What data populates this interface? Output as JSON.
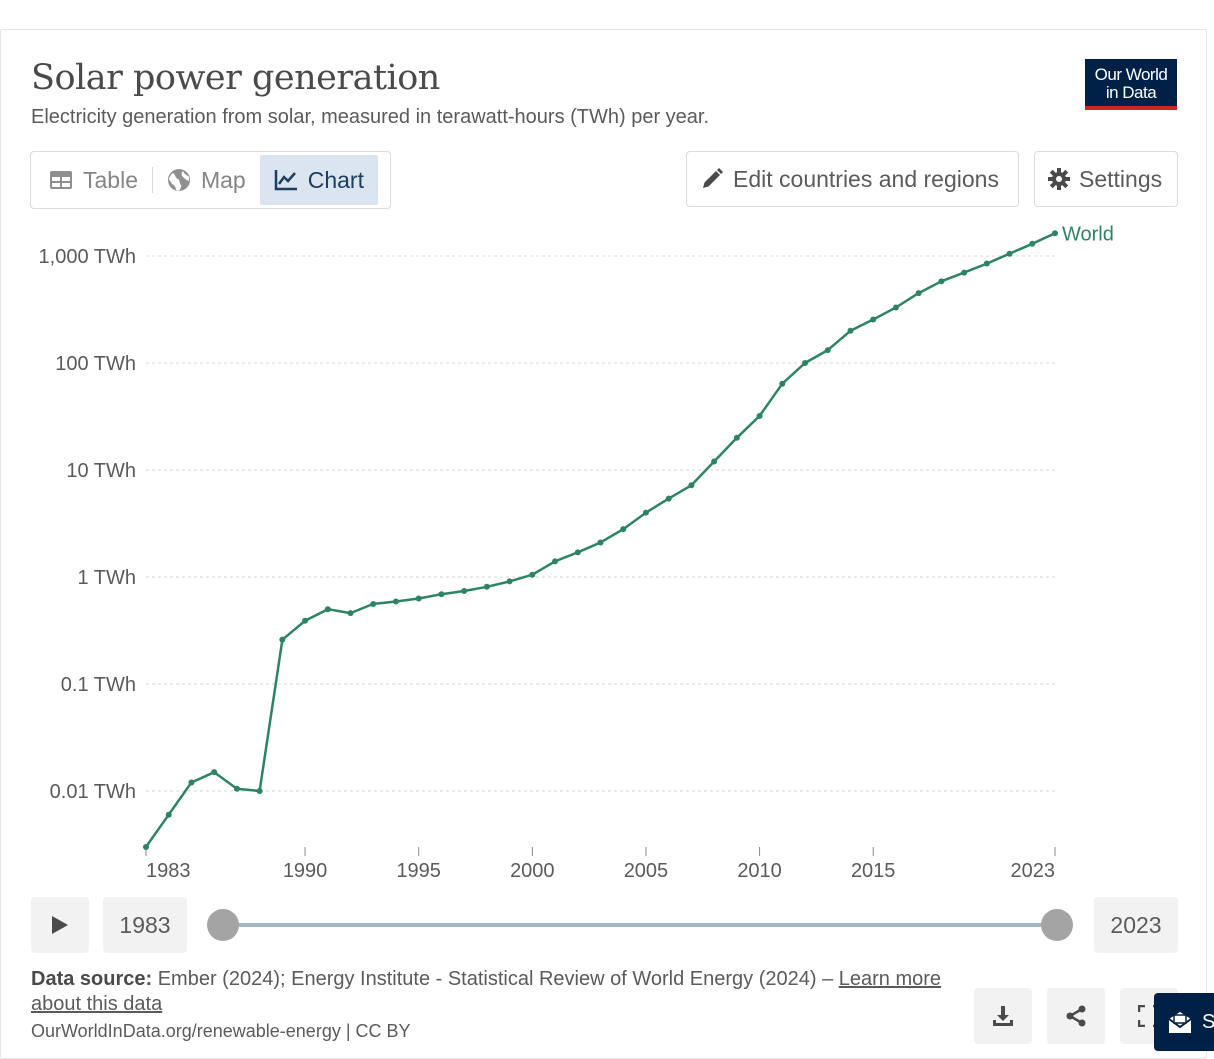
{
  "header": {
    "title": "Solar power generation",
    "subtitle": "Electricity generation from solar, measured in terawatt-hours (TWh) per year.",
    "logo_line1": "Our World",
    "logo_line2": "in Data"
  },
  "tabs": [
    {
      "label": "Table",
      "icon": "table-icon",
      "active": false
    },
    {
      "label": "Map",
      "icon": "globe-icon",
      "active": false
    },
    {
      "label": "Chart",
      "icon": "line-chart-icon",
      "active": true
    }
  ],
  "toolbar": {
    "edit_label": "Edit countries and regions",
    "settings_label": "Settings"
  },
  "colors": {
    "series": "#2c8465",
    "brand": "#002147",
    "brand_accent": "#ce261e",
    "active_tab_bg": "#dbe5f0"
  },
  "chart_data": {
    "type": "line",
    "title": "Solar power generation",
    "subtitle": "Electricity generation from solar, measured in terawatt-hours (TWh) per year.",
    "yscale": "log",
    "ylim": [
      0.003,
      1600
    ],
    "y_ticks": [
      {
        "value": 0.01,
        "label": "0.01 TWh"
      },
      {
        "value": 0.1,
        "label": "0.1 TWh"
      },
      {
        "value": 1,
        "label": "1 TWh"
      },
      {
        "value": 10,
        "label": "10 TWh"
      },
      {
        "value": 100,
        "label": "100 TWh"
      },
      {
        "value": 1000,
        "label": "1,000 TWh"
      }
    ],
    "x_ticks": [
      {
        "value": 1983,
        "label": "1983"
      },
      {
        "value": 1990,
        "label": "1990"
      },
      {
        "value": 1995,
        "label": "1995"
      },
      {
        "value": 2000,
        "label": "2000"
      },
      {
        "value": 2005,
        "label": "2005"
      },
      {
        "value": 2010,
        "label": "2010"
      },
      {
        "value": 2015,
        "label": "2015"
      },
      {
        "value": 2023,
        "label": "2023"
      }
    ],
    "xlim": [
      1983,
      2023
    ],
    "grid": "horizontal dashed",
    "legend": "end-of-line label",
    "series": [
      {
        "name": "World",
        "x": [
          1983,
          1984,
          1985,
          1986,
          1987,
          1988,
          1989,
          1990,
          1991,
          1992,
          1993,
          1994,
          1995,
          1996,
          1997,
          1998,
          1999,
          2000,
          2001,
          2002,
          2003,
          2004,
          2005,
          2006,
          2007,
          2008,
          2009,
          2010,
          2011,
          2012,
          2013,
          2014,
          2015,
          2016,
          2017,
          2018,
          2019,
          2020,
          2021,
          2022,
          2023
        ],
        "y": [
          0.003,
          0.006,
          0.012,
          0.015,
          0.0105,
          0.01,
          0.26,
          0.39,
          0.5,
          0.46,
          0.56,
          0.59,
          0.63,
          0.69,
          0.74,
          0.81,
          0.91,
          1.05,
          1.4,
          1.7,
          2.1,
          2.8,
          4.0,
          5.4,
          7.2,
          12,
          20,
          32,
          64,
          100,
          132,
          200,
          255,
          330,
          450,
          580,
          700,
          850,
          1050,
          1300,
          1630
        ]
      }
    ]
  },
  "timeline": {
    "start_year": "1983",
    "end_year": "2023"
  },
  "footer": {
    "source_label": "Data source:",
    "source_text": " Ember (2024); Energy Institute - Statistical Review of World Energy (2024) – ",
    "learn_more": "Learn more about this data",
    "url": "OurWorldInData.org/renewable-energy | CC BY",
    "feedback_label": "S"
  }
}
